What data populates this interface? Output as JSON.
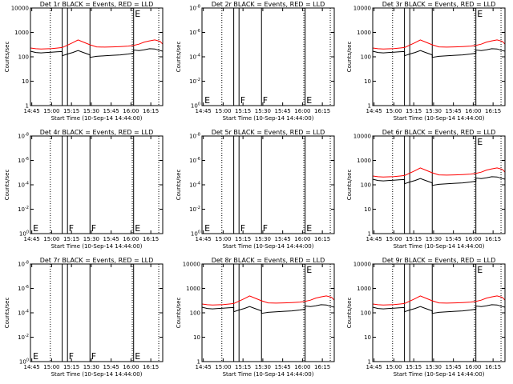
{
  "figure": {
    "x_axis_label": "Start Time (10-Sep-14 14:44:00)",
    "y_axis_label": "Counts/sec",
    "x_tick_labels": [
      "14:45",
      "15:00",
      "15:15",
      "15:30",
      "15:45",
      "16:00",
      "16:15"
    ],
    "colors": {
      "events": "#000000",
      "lld": "#ff0000",
      "frame": "#000000",
      "background": "#ffffff"
    }
  },
  "chart_data": [
    {
      "type": "line",
      "panel": "det-1r",
      "title": "Det 1r BLACK = Events, RED = LLD",
      "scale": "log",
      "ylim": [
        1,
        10000
      ],
      "yticks": [
        1,
        10,
        100,
        1000,
        10000
      ],
      "ytick_labels": [
        "1",
        "10",
        "100",
        "1000",
        "10000"
      ],
      "xlim": [
        "14:44",
        "16:24"
      ],
      "vertical_lines": {
        "solid": [
          "15:08",
          "15:12",
          "15:29",
          "16:02"
        ],
        "dotted": [
          "14:59",
          "16:01",
          "16:21"
        ]
      },
      "markers": [
        {
          "time": "16:02",
          "label": "E"
        }
      ],
      "series": [
        {
          "key": "events",
          "x": [
            "14:44",
            "14:48",
            "14:52",
            "14:56",
            "15:00",
            "15:04",
            "15:08",
            "15:08",
            "15:12",
            "15:16",
            "15:20",
            "15:24",
            "15:29",
            "15:29",
            "15:34",
            "15:40",
            "15:46",
            "15:52",
            "15:58",
            "16:02",
            "16:02",
            "16:06",
            "16:10",
            "16:14",
            "16:18",
            "16:22",
            "16:24"
          ],
          "y": [
            170,
            150,
            145,
            150,
            155,
            160,
            165,
            110,
            130,
            150,
            180,
            150,
            120,
            95,
            105,
            110,
            115,
            120,
            130,
            140,
            190,
            180,
            195,
            215,
            210,
            180,
            170
          ]
        },
        {
          "key": "lld",
          "x": [
            "14:44",
            "14:48",
            "14:52",
            "14:56",
            "15:00",
            "15:04",
            "15:08",
            "15:12",
            "15:16",
            "15:20",
            "15:24",
            "15:29",
            "15:34",
            "15:40",
            "15:46",
            "15:52",
            "15:58",
            "16:02",
            "16:06",
            "16:10",
            "16:14",
            "16:18",
            "16:22",
            "16:24"
          ],
          "y": [
            230,
            215,
            210,
            212,
            218,
            228,
            240,
            300,
            380,
            490,
            400,
            310,
            255,
            250,
            255,
            262,
            275,
            295,
            330,
            400,
            450,
            490,
            430,
            330
          ]
        }
      ]
    },
    {
      "type": "line",
      "panel": "det-2r",
      "title": "Det 2r BLACK = Events, RED = LLD",
      "scale": "log",
      "ylim": [
        1,
        1e-08
      ],
      "yticks": [
        1,
        0.01,
        0.0001,
        1e-06,
        1e-08
      ],
      "ytick_labels": [
        "10^0",
        "10^-2",
        "10^-4",
        "10^-6",
        "10^-8"
      ],
      "xlim": [
        "14:44",
        "16:24"
      ],
      "vertical_lines": {
        "solid": [
          "15:08",
          "15:12",
          "15:29",
          "16:02"
        ],
        "dotted": [
          "14:59",
          "16:01",
          "16:21"
        ]
      },
      "markers": [
        {
          "time": "14:45",
          "label": "E"
        },
        {
          "time": "15:12",
          "label": "F"
        },
        {
          "time": "15:29",
          "label": "F"
        },
        {
          "time": "16:02",
          "label": "E"
        }
      ],
      "series": []
    },
    {
      "type": "line",
      "panel": "det-3r",
      "title": "Det 3r BLACK = Events, RED = LLD",
      "scale": "log",
      "ylim": [
        1,
        10000
      ],
      "yticks": [
        1,
        10,
        100,
        1000,
        10000
      ],
      "ytick_labels": [
        "1",
        "10",
        "100",
        "1000",
        "10000"
      ],
      "xlim": [
        "14:44",
        "16:24"
      ],
      "vertical_lines": {
        "solid": [
          "15:08",
          "15:12",
          "15:29",
          "16:02"
        ],
        "dotted": [
          "14:59",
          "16:01",
          "16:21"
        ]
      },
      "markers": [
        {
          "time": "16:02",
          "label": "E"
        }
      ],
      "series": [
        {
          "key": "events",
          "x": [
            "14:44",
            "14:48",
            "14:52",
            "14:56",
            "15:00",
            "15:04",
            "15:08",
            "15:08",
            "15:12",
            "15:16",
            "15:20",
            "15:24",
            "15:29",
            "15:29",
            "15:34",
            "15:40",
            "15:46",
            "15:52",
            "15:58",
            "16:02",
            "16:02",
            "16:06",
            "16:10",
            "16:14",
            "16:18",
            "16:22",
            "16:24"
          ],
          "y": [
            170,
            150,
            145,
            150,
            155,
            160,
            165,
            110,
            130,
            150,
            180,
            150,
            120,
            95,
            105,
            110,
            115,
            120,
            130,
            140,
            190,
            180,
            195,
            215,
            210,
            180,
            170
          ]
        },
        {
          "key": "lld",
          "x": [
            "14:44",
            "14:48",
            "14:52",
            "14:56",
            "15:00",
            "15:04",
            "15:08",
            "15:12",
            "15:16",
            "15:20",
            "15:24",
            "15:29",
            "15:34",
            "15:40",
            "15:46",
            "15:52",
            "15:58",
            "16:02",
            "16:06",
            "16:10",
            "16:14",
            "16:18",
            "16:22",
            "16:24"
          ],
          "y": [
            230,
            215,
            210,
            212,
            218,
            228,
            240,
            300,
            380,
            490,
            400,
            310,
            255,
            250,
            255,
            262,
            275,
            295,
            330,
            400,
            450,
            490,
            430,
            330
          ]
        }
      ]
    },
    {
      "type": "line",
      "panel": "det-4r",
      "title": "Det 4r BLACK = Events, RED = LLD",
      "scale": "log",
      "ylim": [
        1,
        1e-08
      ],
      "yticks": [
        1,
        0.01,
        0.0001,
        1e-06,
        1e-08
      ],
      "ytick_labels": [
        "10^0",
        "10^-2",
        "10^-4",
        "10^-6",
        "10^-8"
      ],
      "xlim": [
        "14:44",
        "16:24"
      ],
      "vertical_lines": {
        "solid": [
          "15:08",
          "15:12",
          "15:29",
          "16:02"
        ],
        "dotted": [
          "14:59",
          "16:01",
          "16:21"
        ]
      },
      "markers": [
        {
          "time": "14:45",
          "label": "E"
        },
        {
          "time": "15:12",
          "label": "F"
        },
        {
          "time": "15:29",
          "label": "F"
        },
        {
          "time": "16:02",
          "label": "E"
        }
      ],
      "series": []
    },
    {
      "type": "line",
      "panel": "det-5r",
      "title": "Det 5r BLACK = Events, RED = LLD",
      "scale": "log",
      "ylim": [
        1,
        1e-08
      ],
      "yticks": [
        1,
        0.01,
        0.0001,
        1e-06,
        1e-08
      ],
      "ytick_labels": [
        "10^0",
        "10^-2",
        "10^-4",
        "10^-6",
        "10^-8"
      ],
      "xlim": [
        "14:44",
        "16:24"
      ],
      "vertical_lines": {
        "solid": [
          "15:08",
          "15:12",
          "15:29",
          "16:02"
        ],
        "dotted": [
          "14:59",
          "16:01",
          "16:21"
        ]
      },
      "markers": [
        {
          "time": "14:45",
          "label": "E"
        },
        {
          "time": "15:12",
          "label": "F"
        },
        {
          "time": "15:29",
          "label": "F"
        },
        {
          "time": "16:02",
          "label": "E"
        }
      ],
      "series": []
    },
    {
      "type": "line",
      "panel": "det-6r",
      "title": "Det 6r BLACK = Events, RED = LLD",
      "scale": "log",
      "ylim": [
        1,
        10000
      ],
      "yticks": [
        1,
        10,
        100,
        1000,
        10000
      ],
      "ytick_labels": [
        "1",
        "10",
        "100",
        "1000",
        "10000"
      ],
      "xlim": [
        "14:44",
        "16:24"
      ],
      "vertical_lines": {
        "solid": [
          "15:08",
          "15:12",
          "15:29",
          "16:02"
        ],
        "dotted": [
          "14:59",
          "16:01",
          "16:21"
        ]
      },
      "markers": [
        {
          "time": "16:02",
          "label": "E"
        }
      ],
      "series": [
        {
          "key": "events",
          "x": [
            "14:44",
            "14:48",
            "14:52",
            "14:56",
            "15:00",
            "15:04",
            "15:08",
            "15:08",
            "15:12",
            "15:16",
            "15:20",
            "15:24",
            "15:29",
            "15:29",
            "15:34",
            "15:40",
            "15:46",
            "15:52",
            "15:58",
            "16:02",
            "16:02",
            "16:06",
            "16:10",
            "16:14",
            "16:18",
            "16:22",
            "16:24"
          ],
          "y": [
            170,
            150,
            145,
            150,
            155,
            160,
            165,
            110,
            130,
            150,
            180,
            150,
            120,
            95,
            105,
            110,
            115,
            120,
            130,
            140,
            190,
            180,
            195,
            215,
            210,
            180,
            170
          ]
        },
        {
          "key": "lld",
          "x": [
            "14:44",
            "14:48",
            "14:52",
            "14:56",
            "15:00",
            "15:04",
            "15:08",
            "15:12",
            "15:16",
            "15:20",
            "15:24",
            "15:29",
            "15:34",
            "15:40",
            "15:46",
            "15:52",
            "15:58",
            "16:02",
            "16:06",
            "16:10",
            "16:14",
            "16:18",
            "16:22",
            "16:24"
          ],
          "y": [
            230,
            215,
            210,
            212,
            218,
            228,
            240,
            300,
            380,
            490,
            400,
            310,
            255,
            250,
            255,
            262,
            275,
            295,
            330,
            400,
            450,
            490,
            430,
            330
          ]
        }
      ]
    },
    {
      "type": "line",
      "panel": "det-7r",
      "title": "Det 7r BLACK = Events, RED = LLD",
      "scale": "log",
      "ylim": [
        1,
        1e-08
      ],
      "yticks": [
        1,
        0.01,
        0.0001,
        1e-06,
        1e-08
      ],
      "ytick_labels": [
        "10^0",
        "10^-2",
        "10^-4",
        "10^-6",
        "10^-8"
      ],
      "xlim": [
        "14:44",
        "16:24"
      ],
      "vertical_lines": {
        "solid": [
          "15:08",
          "15:12",
          "15:29",
          "16:02"
        ],
        "dotted": [
          "14:59",
          "16:01",
          "16:21"
        ]
      },
      "markers": [
        {
          "time": "14:45",
          "label": "E"
        },
        {
          "time": "15:12",
          "label": "F"
        },
        {
          "time": "15:29",
          "label": "F"
        },
        {
          "time": "16:02",
          "label": "E"
        }
      ],
      "series": []
    },
    {
      "type": "line",
      "panel": "det-8r",
      "title": "Det 8r BLACK = Events, RED = LLD",
      "scale": "log",
      "ylim": [
        1,
        10000
      ],
      "yticks": [
        1,
        10,
        100,
        1000,
        10000
      ],
      "ytick_labels": [
        "1",
        "10",
        "100",
        "1000",
        "10000"
      ],
      "xlim": [
        "14:44",
        "16:24"
      ],
      "vertical_lines": {
        "solid": [
          "15:08",
          "15:12",
          "15:29",
          "16:02"
        ],
        "dotted": [
          "14:59",
          "16:01",
          "16:21"
        ]
      },
      "markers": [
        {
          "time": "16:02",
          "label": "E"
        }
      ],
      "series": [
        {
          "key": "events",
          "x": [
            "14:44",
            "14:48",
            "14:52",
            "14:56",
            "15:00",
            "15:04",
            "15:08",
            "15:08",
            "15:12",
            "15:16",
            "15:20",
            "15:24",
            "15:29",
            "15:29",
            "15:34",
            "15:40",
            "15:46",
            "15:52",
            "15:58",
            "16:02",
            "16:02",
            "16:06",
            "16:10",
            "16:14",
            "16:18",
            "16:22",
            "16:24"
          ],
          "y": [
            170,
            150,
            145,
            150,
            155,
            160,
            165,
            110,
            130,
            150,
            180,
            150,
            120,
            95,
            105,
            110,
            115,
            120,
            130,
            140,
            190,
            180,
            195,
            215,
            210,
            180,
            170
          ]
        },
        {
          "key": "lld",
          "x": [
            "14:44",
            "14:48",
            "14:52",
            "14:56",
            "15:00",
            "15:04",
            "15:08",
            "15:12",
            "15:16",
            "15:20",
            "15:24",
            "15:29",
            "15:34",
            "15:40",
            "15:46",
            "15:52",
            "15:58",
            "16:02",
            "16:06",
            "16:10",
            "16:14",
            "16:18",
            "16:22",
            "16:24"
          ],
          "y": [
            230,
            215,
            210,
            212,
            218,
            228,
            240,
            300,
            380,
            490,
            400,
            310,
            255,
            250,
            255,
            262,
            275,
            295,
            330,
            400,
            450,
            490,
            430,
            330
          ]
        }
      ]
    },
    {
      "type": "line",
      "panel": "det-9r",
      "title": "Det 9r BLACK = Events, RED = LLD",
      "scale": "log",
      "ylim": [
        1,
        10000
      ],
      "yticks": [
        1,
        10,
        100,
        1000,
        10000
      ],
      "ytick_labels": [
        "1",
        "10",
        "100",
        "1000",
        "10000"
      ],
      "xlim": [
        "14:44",
        "16:24"
      ],
      "vertical_lines": {
        "solid": [
          "15:08",
          "15:12",
          "15:29",
          "16:02"
        ],
        "dotted": [
          "14:59",
          "16:01",
          "16:21"
        ]
      },
      "markers": [
        {
          "time": "16:02",
          "label": "E"
        }
      ],
      "series": [
        {
          "key": "events",
          "x": [
            "14:44",
            "14:48",
            "14:52",
            "14:56",
            "15:00",
            "15:04",
            "15:08",
            "15:08",
            "15:12",
            "15:16",
            "15:20",
            "15:24",
            "15:29",
            "15:29",
            "15:34",
            "15:40",
            "15:46",
            "15:52",
            "15:58",
            "16:02",
            "16:02",
            "16:06",
            "16:10",
            "16:14",
            "16:18",
            "16:22",
            "16:24"
          ],
          "y": [
            170,
            150,
            145,
            150,
            155,
            160,
            165,
            110,
            130,
            150,
            180,
            150,
            120,
            95,
            105,
            110,
            115,
            120,
            130,
            140,
            190,
            180,
            195,
            215,
            210,
            180,
            170
          ]
        },
        {
          "key": "lld",
          "x": [
            "14:44",
            "14:48",
            "14:52",
            "14:56",
            "15:00",
            "15:04",
            "15:08",
            "15:12",
            "15:16",
            "15:20",
            "15:24",
            "15:29",
            "15:34",
            "15:40",
            "15:46",
            "15:52",
            "15:58",
            "16:02",
            "16:06",
            "16:10",
            "16:14",
            "16:18",
            "16:22",
            "16:24"
          ],
          "y": [
            230,
            215,
            210,
            212,
            218,
            228,
            240,
            300,
            380,
            490,
            400,
            310,
            255,
            250,
            255,
            262,
            275,
            295,
            330,
            400,
            450,
            490,
            430,
            330
          ]
        }
      ]
    }
  ]
}
